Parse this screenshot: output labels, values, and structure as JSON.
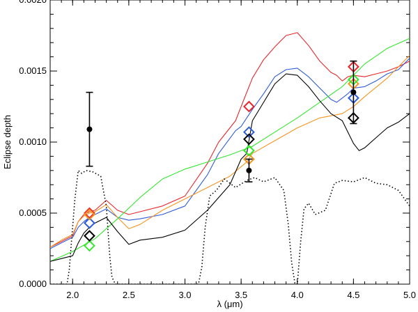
{
  "chart_data": {
    "type": "line",
    "title": "",
    "xlabel": "λ (μm)",
    "ylabel": "Eclipse depth",
    "xlim": [
      1.8,
      5.0
    ],
    "ylim": [
      0.0,
      0.002
    ],
    "grid": false,
    "x_ticks": [
      2.0,
      2.5,
      3.0,
      3.5,
      4.0,
      4.5,
      5.0
    ],
    "x_tick_labels": [
      "2.0",
      "2.5",
      "3.0",
      "3.5",
      "4.0",
      "4.5",
      "5.0"
    ],
    "y_ticks": [
      0.0,
      0.0005,
      0.001,
      0.0015,
      0.002
    ],
    "y_tick_labels": [
      "0.0000",
      "0.0005",
      "0.0010",
      "0.0015",
      "0.0020"
    ],
    "series": [
      {
        "name": "red model",
        "color": "#e8262b",
        "x": [
          1.8,
          1.9,
          2.0,
          2.05,
          2.1,
          2.15,
          2.2,
          2.3,
          2.4,
          2.5,
          2.6,
          2.8,
          3.0,
          3.2,
          3.3,
          3.45,
          3.5,
          3.6,
          3.7,
          3.8,
          3.9,
          4.0,
          4.1,
          4.2,
          4.3,
          4.35,
          4.4,
          4.45,
          4.5,
          4.6,
          4.7,
          4.8,
          4.9,
          5.0
        ],
        "y": [
          0.00026,
          0.0003,
          0.00034,
          0.00044,
          0.00049,
          0.00051,
          0.00052,
          0.00059,
          0.00052,
          0.00049,
          0.00051,
          0.00055,
          0.00062,
          0.00085,
          0.001,
          0.00115,
          0.00125,
          0.00145,
          0.00158,
          0.00167,
          0.00175,
          0.00177,
          0.00168,
          0.00157,
          0.00149,
          0.00147,
          0.00143,
          0.00146,
          0.00147,
          0.00146,
          0.00148,
          0.0015,
          0.00153,
          0.00157
        ]
      },
      {
        "name": "blue model",
        "color": "#2e5bd9",
        "x": [
          1.8,
          1.9,
          2.0,
          2.05,
          2.1,
          2.15,
          2.2,
          2.3,
          2.4,
          2.5,
          2.6,
          2.8,
          3.0,
          3.2,
          3.3,
          3.45,
          3.5,
          3.6,
          3.7,
          3.8,
          3.9,
          4.0,
          4.1,
          4.2,
          4.3,
          4.35,
          4.4,
          4.45,
          4.5,
          4.6,
          4.7,
          4.8,
          4.9,
          5.0
        ],
        "y": [
          0.00025,
          0.00029,
          0.00033,
          0.0004,
          0.00044,
          0.00047,
          0.00049,
          0.00053,
          0.00047,
          0.00045,
          0.00046,
          0.00049,
          0.00055,
          0.00077,
          0.00092,
          0.00108,
          0.00111,
          0.00123,
          0.00134,
          0.00146,
          0.00151,
          0.00152,
          0.00146,
          0.00138,
          0.0013,
          0.00128,
          0.00131,
          0.00134,
          0.00138,
          0.00139,
          0.00143,
          0.00148,
          0.00151,
          0.00159
        ]
      },
      {
        "name": "orange model",
        "color": "#f5941f",
        "x": [
          1.8,
          1.9,
          2.0,
          2.05,
          2.1,
          2.15,
          2.2,
          2.3,
          2.4,
          2.5,
          2.6,
          2.8,
          3.0,
          3.2,
          3.4,
          3.55,
          3.6,
          3.8,
          4.0,
          4.2,
          4.4,
          4.5,
          4.6,
          4.8,
          5.0
        ],
        "y": [
          0.00026,
          0.00031,
          0.00035,
          0.00044,
          0.00048,
          0.0005,
          0.00051,
          0.00056,
          0.00047,
          0.00039,
          0.00042,
          0.00052,
          0.0006,
          0.00068,
          0.00076,
          0.00086,
          0.00092,
          0.00101,
          0.0011,
          0.00117,
          0.0012,
          0.00125,
          0.00132,
          0.00145,
          0.00161
        ]
      },
      {
        "name": "green model",
        "color": "#33e82e",
        "x": [
          1.8,
          2.0,
          2.2,
          2.4,
          2.6,
          2.8,
          3.0,
          3.2,
          3.4,
          3.6,
          3.8,
          4.0,
          4.2,
          4.4,
          4.5,
          4.6,
          4.8,
          5.0
        ],
        "y": [
          0.00016,
          0.00023,
          0.00032,
          0.00046,
          0.00061,
          0.00074,
          0.00081,
          0.00086,
          0.00091,
          0.00097,
          0.00107,
          0.00117,
          0.00128,
          0.00139,
          0.00147,
          0.00155,
          0.00166,
          0.00173
        ]
      },
      {
        "name": "black model",
        "color": "#000000",
        "x": [
          1.8,
          1.9,
          2.0,
          2.05,
          2.1,
          2.15,
          2.2,
          2.3,
          2.4,
          2.5,
          2.6,
          2.8,
          3.0,
          3.2,
          3.4,
          3.5,
          3.55,
          3.6,
          3.7,
          3.8,
          3.9,
          4.0,
          4.1,
          4.2,
          4.3,
          4.4,
          4.5,
          4.55,
          4.6,
          4.7,
          4.8,
          4.9,
          5.0
        ],
        "y": [
          0.00016,
          0.00018,
          0.0002,
          0.00029,
          0.00036,
          0.0004,
          0.00043,
          0.00047,
          0.00037,
          0.00028,
          0.00031,
          0.00033,
          0.00038,
          0.00052,
          0.0007,
          0.00088,
          0.00092,
          0.00115,
          0.00128,
          0.00141,
          0.00148,
          0.00147,
          0.00139,
          0.00129,
          0.0012,
          0.00115,
          0.00099,
          0.00094,
          0.00096,
          0.00103,
          0.0011,
          0.00114,
          0.0012
        ]
      },
      {
        "name": "filter transmission",
        "color": "#000000",
        "dashed": true,
        "x": [
          1.8,
          1.95,
          1.97,
          1.99,
          2.02,
          2.05,
          2.08,
          2.12,
          2.18,
          2.25,
          2.3,
          2.33,
          2.35,
          2.38,
          3.12,
          3.15,
          3.18,
          3.22,
          3.28,
          3.35,
          3.45,
          3.55,
          3.62,
          3.7,
          3.8,
          3.88,
          3.92,
          3.95,
          3.98,
          4.0,
          4.03,
          4.06,
          4.1,
          4.16,
          4.25,
          4.33,
          4.4,
          4.5,
          4.6,
          4.7,
          4.8,
          4.9,
          5.0
        ],
        "y": [
          0.0,
          0.0,
          0.0001,
          0.0003,
          0.0006,
          0.0008,
          0.00078,
          0.0008,
          0.00079,
          0.00076,
          0.00055,
          0.0002,
          5e-05,
          0.0,
          0.0,
          0.00012,
          0.0004,
          0.00062,
          0.00066,
          0.00074,
          0.00068,
          0.00073,
          0.00075,
          0.00072,
          0.00075,
          0.00066,
          0.00042,
          0.00015,
          0.0,
          0.0,
          0.0003,
          0.00053,
          0.00057,
          0.00049,
          0.00052,
          0.00071,
          0.00073,
          0.00072,
          0.00075,
          0.00071,
          0.0007,
          0.00066,
          0.00055
        ]
      }
    ],
    "observations": {
      "name": "measured eclipse depths",
      "color": "#000000",
      "points": [
        {
          "x": 2.15,
          "y": 0.00109,
          "err": 0.00026
        },
        {
          "x": 3.57,
          "y": 0.0008,
          "err": 8e-05
        },
        {
          "x": 4.5,
          "y": 0.00135,
          "err": 0.00022
        }
      ]
    },
    "band_averages": [
      {
        "series": "red model",
        "color": "#e8262b",
        "points": [
          [
            2.15,
            0.0005
          ],
          [
            3.57,
            0.00125
          ],
          [
            4.5,
            0.00153
          ]
        ]
      },
      {
        "series": "blue model",
        "color": "#2e5bd9",
        "points": [
          [
            2.15,
            0.00043
          ],
          [
            3.57,
            0.00107
          ],
          [
            4.5,
            0.00131
          ]
        ]
      },
      {
        "series": "orange model",
        "color": "#f5941f",
        "points": [
          [
            2.15,
            0.00049
          ],
          [
            3.57,
            0.00088
          ],
          [
            4.5,
            0.00141
          ]
        ]
      },
      {
        "series": "green model",
        "color": "#33e82e",
        "points": [
          [
            2.15,
            0.00027
          ],
          [
            3.57,
            0.00094
          ],
          [
            4.5,
            0.00144
          ]
        ]
      },
      {
        "series": "black model",
        "color": "#000000",
        "points": [
          [
            2.15,
            0.00034
          ],
          [
            3.57,
            0.00102
          ],
          [
            4.5,
            0.00117
          ]
        ]
      }
    ]
  }
}
